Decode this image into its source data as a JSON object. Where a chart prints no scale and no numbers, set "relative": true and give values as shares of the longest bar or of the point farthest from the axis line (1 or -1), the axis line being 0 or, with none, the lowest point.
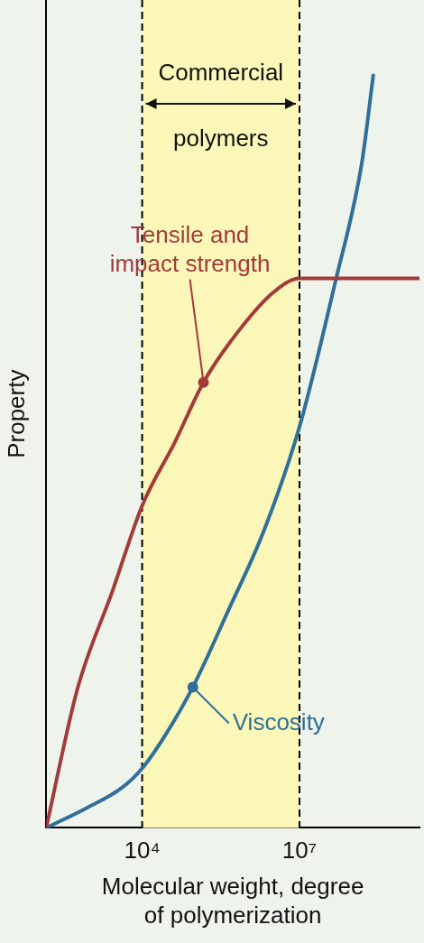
{
  "chart_data": {
    "type": "line",
    "relative": true,
    "log": "x",
    "xlabel": "Molecular weight, degree\nof polymerization",
    "ylabel": "Property",
    "xlim": [
      148,
      1940000000
    ],
    "xticks": [
      {
        "value": 10000,
        "label": "10⁴"
      },
      {
        "value": 10000000,
        "label": "10⁷"
      }
    ],
    "series": [
      {
        "color": "#a33a3a",
        "x": [
          148,
          580,
          2760,
          10000,
          42400,
          147600,
          651000,
          3100000,
          10000000,
          1940000000
        ],
        "values": [
          0,
          0.184,
          0.316,
          0.428,
          0.513,
          0.592,
          0.658,
          0.711,
          0.73,
          0.73
        ]
      },
      {
        "color": "#2f6f9a",
        "x": [
          148,
          855,
          4070,
          10000,
          28700,
          92500,
          440000,
          2100000,
          10000000,
          47700000,
          153000000,
          255000000
        ],
        "values": [
          0,
          0.026,
          0.053,
          0.079,
          0.125,
          0.187,
          0.289,
          0.395,
          0.533,
          0.724,
          0.882,
          1
        ]
      }
    ],
    "bands": [
      {
        "axis": "x",
        "from": 10000,
        "to": 10000000,
        "label": "Commercial\npolymers",
        "color": "#fbf7b8"
      }
    ],
    "ref_lines": [
      {
        "axis": "x",
        "value": 10000,
        "color": "#000000",
        "line_style": "dashed"
      },
      {
        "axis": "x",
        "value": 10000000,
        "color": "#000000",
        "line_style": "dashed"
      }
    ],
    "annotations": [
      {
        "text": "Tensile and\nimpact strength",
        "x": 147600,
        "y": 0.592
      },
      {
        "text": "Viscosity",
        "x": 92500,
        "y": 0.187
      }
    ],
    "grid": false,
    "legend": false,
    "marker": "none",
    "line_style": "solid"
  }
}
